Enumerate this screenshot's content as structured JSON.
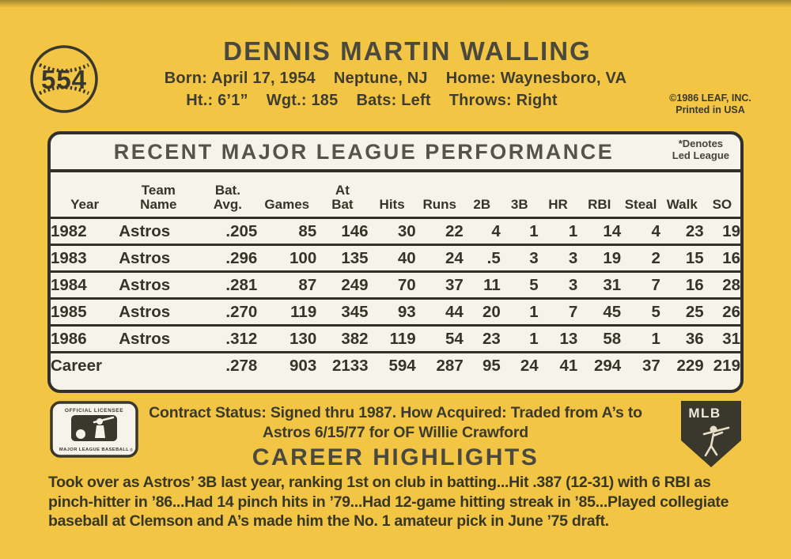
{
  "card": {
    "number": "554",
    "player_name": "DENNIS MARTIN WALLING",
    "bio_line1": "Born: April 17, 1954    Neptune, NJ    Home: Waynesboro, VA",
    "bio_line2": "Ht.: 6’1”    Wgt.: 185    Bats: Left    Throws: Right",
    "copyright_line1": "©1986 LEAF, INC.",
    "copyright_line2": "Printed in USA"
  },
  "stats": {
    "title": "RECENT MAJOR LEAGUE PERFORMANCE",
    "denotes_line1": "*Denotes",
    "denotes_line2": "Led League",
    "columns": [
      {
        "key": "year",
        "line1": "",
        "line2": "Year"
      },
      {
        "key": "team-name",
        "line1": "Team",
        "line2": "Name"
      },
      {
        "key": "bat-avg",
        "line1": "Bat.",
        "line2": "Avg."
      },
      {
        "key": "games",
        "line1": "",
        "line2": "Games"
      },
      {
        "key": "at-bat",
        "line1": "At",
        "line2": "Bat"
      },
      {
        "key": "hits",
        "line1": "",
        "line2": "Hits"
      },
      {
        "key": "runs",
        "line1": "",
        "line2": "Runs"
      },
      {
        "key": "2b",
        "line1": "",
        "line2": "2B"
      },
      {
        "key": "3b",
        "line1": "",
        "line2": "3B"
      },
      {
        "key": "hr",
        "line1": "",
        "line2": "HR"
      },
      {
        "key": "rbi",
        "line1": "",
        "line2": "RBI"
      },
      {
        "key": "steal",
        "line1": "",
        "line2": "Steal"
      },
      {
        "key": "walk",
        "line1": "",
        "line2": "Walk"
      },
      {
        "key": "so",
        "line1": "",
        "line2": "SO"
      }
    ],
    "rows": [
      [
        "1982",
        "Astros",
        ".205",
        "85",
        "146",
        "30",
        "22",
        "4",
        "1",
        "1",
        "14",
        "4",
        "23",
        "19"
      ],
      [
        "1983",
        "Astros",
        ".296",
        "100",
        "135",
        "40",
        "24",
        ".5",
        "3",
        "3",
        "19",
        "2",
        "15",
        "16"
      ],
      [
        "1984",
        "Astros",
        ".281",
        "87",
        "249",
        "70",
        "37",
        "11",
        "5",
        "3",
        "31",
        "7",
        "16",
        "28"
      ],
      [
        "1985",
        "Astros",
        ".270",
        "119",
        "345",
        "93",
        "44",
        "20",
        "1",
        "7",
        "45",
        "5",
        "25",
        "26"
      ],
      [
        "1986",
        "Astros",
        ".312",
        "130",
        "382",
        "119",
        "54",
        "23",
        "1",
        "13",
        "58",
        "1",
        "36",
        "31"
      ],
      [
        "Career",
        "",
        ".278",
        "903",
        "2133",
        "594",
        "287",
        "95",
        "24",
        "41",
        "294",
        "37",
        "229",
        "219"
      ]
    ]
  },
  "footer": {
    "contract_line1": "Contract Status: Signed thru 1987. How Acquired: Traded from A’s to",
    "contract_line2": "Astros 6/15/77 for OF Willie Crawford",
    "highlights_title": "CAREER HIGHLIGHTS",
    "highlights_text": "Took over as Astros’ 3B last year, ranking 1st on club in batting...Hit .387 (12-31) with 6 RBI as pinch-hitter in ’86...Had 14 pinch hits in ’79...Had 12-game hitting streak in ’85...Played collegiate baseball at Clemson and A’s made him the No. 1 amateur pick in June ’75 draft.",
    "mlb_logo_top": "OFFICIAL LICENSEE",
    "mlb_logo_bottom": "MAJOR LEAGUE BASEBALL",
    "mlb_logo_reg": "®",
    "mlbpa_shield_text": "MLB"
  },
  "colors": {
    "background": "#f2c644",
    "panel": "#f6f3ea",
    "ink": "#38362a"
  }
}
